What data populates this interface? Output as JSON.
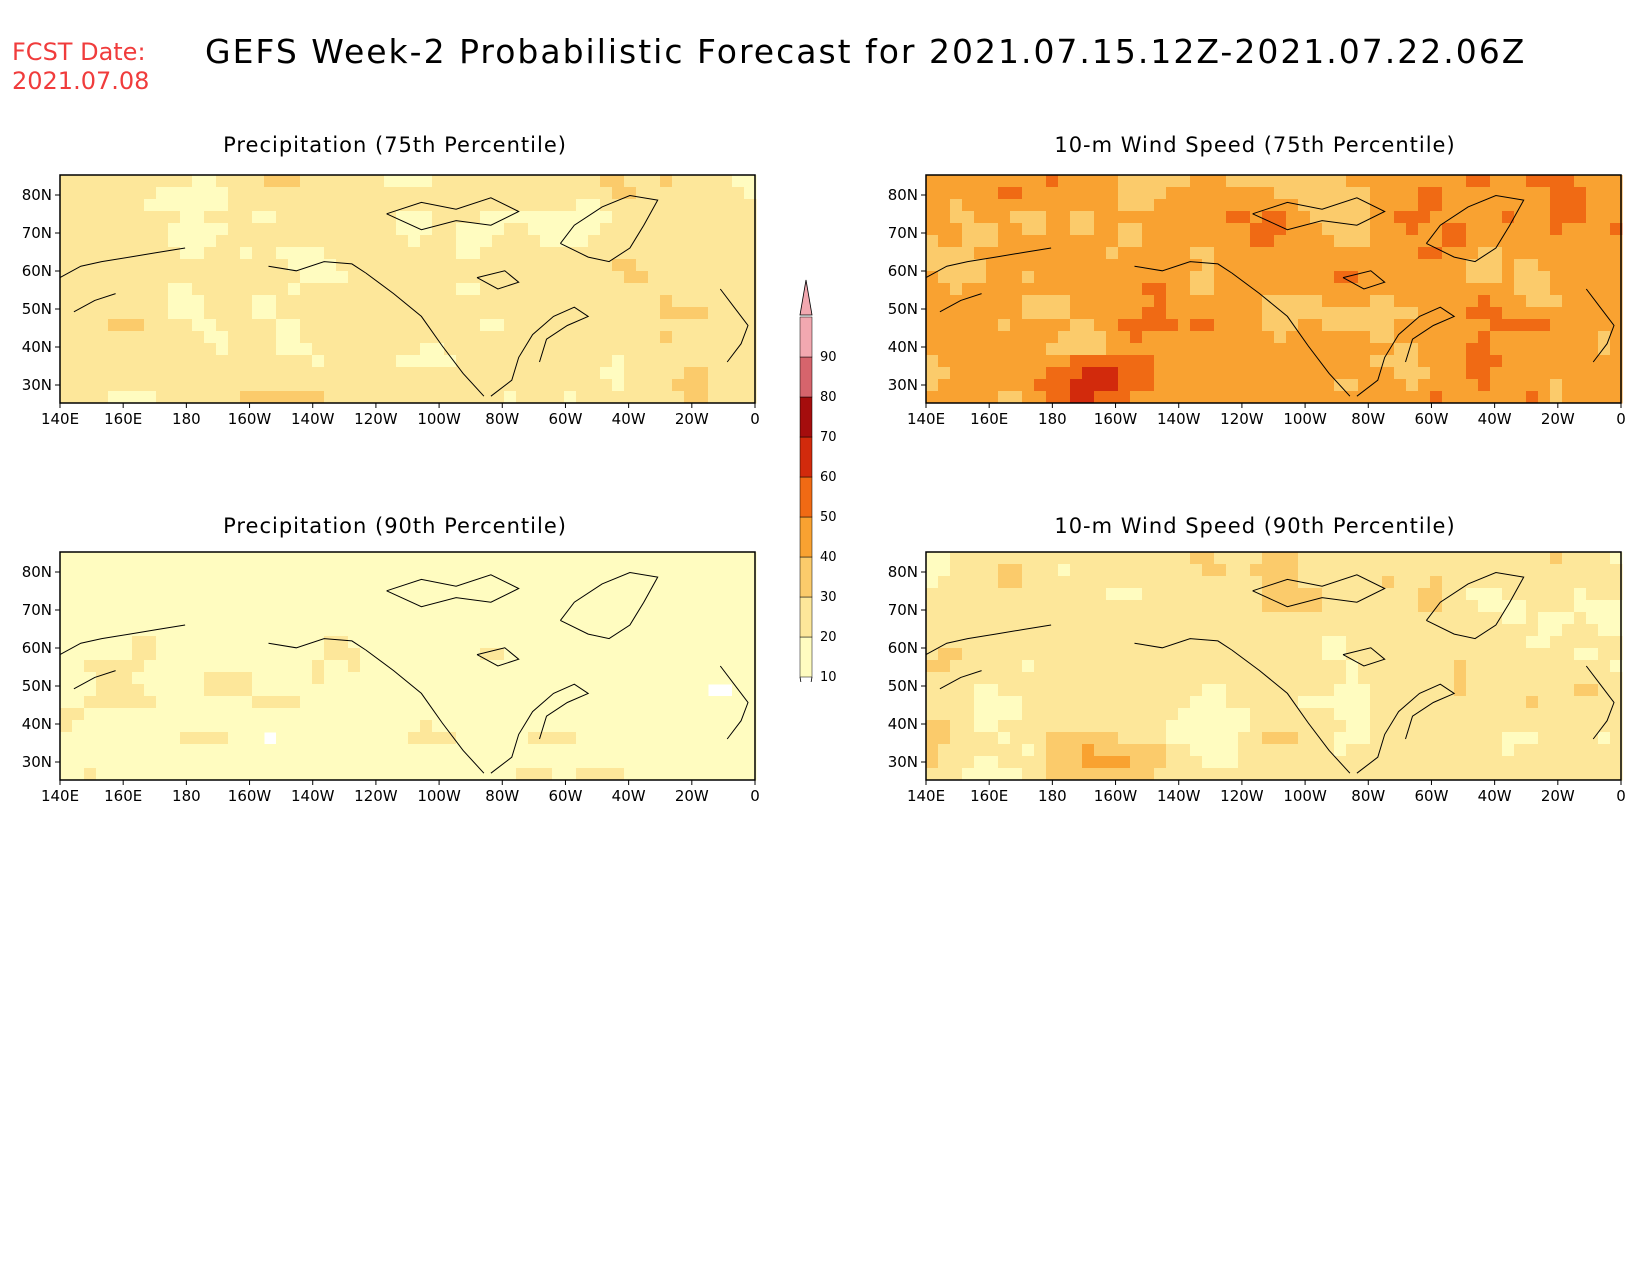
{
  "header": {
    "fcst_label": "FCST Date:",
    "fcst_date": "2021.07.08",
    "title": "GEFS Week-2 Probabilistic Forecast for 2021.07.15.12Z-2021.07.22.06Z"
  },
  "panels": [
    {
      "id": "precip75",
      "title": "Precipitation (75th Percentile)",
      "intensity": "moderate"
    },
    {
      "id": "wind75",
      "title": "10-m Wind Speed (75th Percentile)",
      "intensity": "high"
    },
    {
      "id": "precip90",
      "title": "Precipitation (90th Percentile)",
      "intensity": "low"
    },
    {
      "id": "wind90",
      "title": "10-m Wind Speed (90th Percentile)",
      "intensity": "moderate"
    }
  ],
  "axes": {
    "lat_labels": [
      "80N",
      "70N",
      "60N",
      "50N",
      "40N",
      "30N"
    ],
    "lon_labels": [
      "140E",
      "160E",
      "180",
      "160W",
      "140W",
      "120W",
      "100W",
      "80W",
      "60W",
      "40W",
      "20W",
      "0"
    ]
  },
  "colorbar": {
    "levels": [
      "10",
      "20",
      "30",
      "40",
      "50",
      "60",
      "70",
      "80",
      "90"
    ],
    "colors": [
      "#fffcc0",
      "#fde79a",
      "#fbcb6b",
      "#f9a231",
      "#f06a14",
      "#d22a0c",
      "#a50d0d",
      "#d6646c",
      "#f2a8b0"
    ]
  }
}
